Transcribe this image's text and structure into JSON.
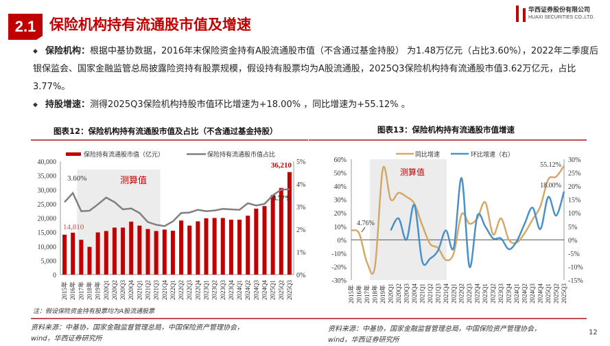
{
  "header": {
    "section": "2.1",
    "title": "保险机构持有流通股市值及增速",
    "logo_cn": "华西证券股份有限公司",
    "logo_en": "HUAXI SECURITIES CO.,LTD."
  },
  "bullets": [
    {
      "keyword": "保险机构：",
      "text": "根据中基协数据，2016年末保险资金持有A股流通股市值（不含通过基金持股） 为1.48万亿元（占比3.60%），2022年二季度后银保监会、国家金融监管总局披露险资持有股票规模，假设持有股票均为A股流通股，2025Q3保险机构持有流通股市值3.62万亿元，占比3.77%。"
    },
    {
      "keyword": "持股增速：",
      "text": "测得2025Q3保险机构持股市值环比增速为+18.00% ，同比增速为+55.12% 。"
    }
  ],
  "colors": {
    "brand": "#c00000",
    "bar": "#c00000",
    "ratio_line": "#7f7f7f",
    "yoy": "#d4a86a",
    "qoq": "#4a90c8",
    "shade": "#ececec"
  },
  "chart_data": [
    {
      "type": "bar",
      "title": "图表12：保险机构持有流通股市值及占比（不含通过基金持股）",
      "categories": [
        "2015年",
        "2016年",
        "2017年",
        "2018年",
        "2019年",
        "2020Q1",
        "2020Q2",
        "2020Q3",
        "2020Q4",
        "2021Q1",
        "2021Q2",
        "2021Q3",
        "2021Q4",
        "2022Q1",
        "2022Q2",
        "2022Q3",
        "2022Q4",
        "2023Q1",
        "2023Q2",
        "2023Q3",
        "2023Q4",
        "2024Q1",
        "2024Q2",
        "2024Q3",
        "2024Q4",
        "2025Q1",
        "2025Q2",
        "2025Q3"
      ],
      "series": [
        {
          "name": "保险持有流通股市值（亿元）",
          "type": "bar",
          "axis": "left",
          "values": [
            14100,
            14810,
            12300,
            9800,
            14900,
            15400,
            16600,
            16600,
            18700,
            17300,
            16100,
            15400,
            15900,
            15500,
            19100,
            17300,
            18800,
            19900,
            20000,
            20000,
            19400,
            19400,
            20800,
            23300,
            24200,
            28100,
            30600,
            36210
          ]
        },
        {
          "name": "保险持有流通股市值占比",
          "type": "line",
          "axis": "right",
          "values": [
            3.2,
            3.6,
            2.8,
            2.82,
            3.1,
            3.4,
            3.2,
            2.88,
            2.92,
            2.72,
            2.32,
            2.2,
            2.14,
            2.35,
            2.72,
            2.74,
            2.86,
            2.8,
            2.83,
            2.9,
            2.88,
            2.86,
            3.15,
            3.05,
            3.12,
            3.5,
            3.75,
            3.77
          ]
        }
      ],
      "ylim_left": [
        0,
        40000
      ],
      "yticks_left": [
        "40,000",
        "35,000",
        "30,000",
        "25,000",
        "20,000",
        "15,000",
        "10,000",
        "5,000",
        "0"
      ],
      "ylim_right": [
        0,
        5
      ],
      "yticks_right": [
        "5%",
        "4%",
        "3%",
        "2%",
        "1%",
        "0%"
      ],
      "shaded_range": [
        "2017年",
        "2021Q3"
      ],
      "shade_label": "测算值",
      "annotations": [
        "3.60%",
        "14,810",
        "36,210",
        "3.77%"
      ],
      "legend": "top",
      "note": "注：假设保险资金持有股票均为A股流通股票",
      "source": "资料来源：中基协，国家金融监督管理总局，中国保险资产管理协会，",
      "source2": "wind，华西证券研究所"
    },
    {
      "type": "line",
      "title": "图表13：保险机构持有流通股市值增速",
      "categories": [
        "2015年",
        "2016年",
        "2017年",
        "2018年",
        "2019年",
        "2020Q1",
        "2020Q2",
        "2020Q3",
        "2020Q4",
        "2021Q1",
        "2021Q2",
        "2021Q3",
        "2021Q4",
        "2022Q1",
        "2022Q2",
        "2022Q3",
        "2022Q4",
        "2023Q1",
        "2023Q2",
        "2023Q3",
        "2023Q4",
        "2024Q1",
        "2024Q2",
        "2024Q3",
        "2024Q4",
        "2025Q1",
        "2025Q2",
        "2025Q3"
      ],
      "series": [
        {
          "name": "同比增速",
          "axis": "left",
          "values": [
            7,
            4.76,
            -17,
            -20,
            53,
            30,
            35,
            32,
            27,
            11,
            -3,
            -6,
            -15,
            -10,
            19,
            12,
            16,
            28,
            4,
            16,
            0,
            -2,
            5,
            15,
            25,
            45,
            47,
            55.12
          ]
        },
        {
          "name": "环比增速（右）",
          "axis": "right",
          "values": [
            null,
            null,
            null,
            null,
            null,
            3.5,
            8,
            0,
            13,
            -8,
            -7,
            -4,
            3.5,
            -3,
            23,
            -10,
            9,
            5,
            0.5,
            0.5,
            -3.5,
            -0.5,
            6,
            12,
            4,
            16,
            9,
            18
          ]
        }
      ],
      "ylim_left": [
        -30,
        60
      ],
      "yticks_left": [
        "60%",
        "50%",
        "40%",
        "30%",
        "20%",
        "10%",
        "0%",
        "-10%",
        "-20%",
        "-30%"
      ],
      "ylim_right": [
        -15,
        30
      ],
      "yticks_right": [
        "30%",
        "25%",
        "20%",
        "15%",
        "10%",
        "5%",
        "0%",
        "-5%",
        "-10%",
        "-15%"
      ],
      "shaded_range": [
        "2017年",
        "2021Q4"
      ],
      "shade_label": "测算值",
      "annotations": [
        "4.76%",
        "55.12%",
        "18.00%"
      ],
      "legend": "top",
      "source": "资料来源：中基协，国家金融监督管理总局，中国保险资产管理协会，",
      "source2": "wind，华西证券研究所"
    }
  ],
  "page_number": "12"
}
